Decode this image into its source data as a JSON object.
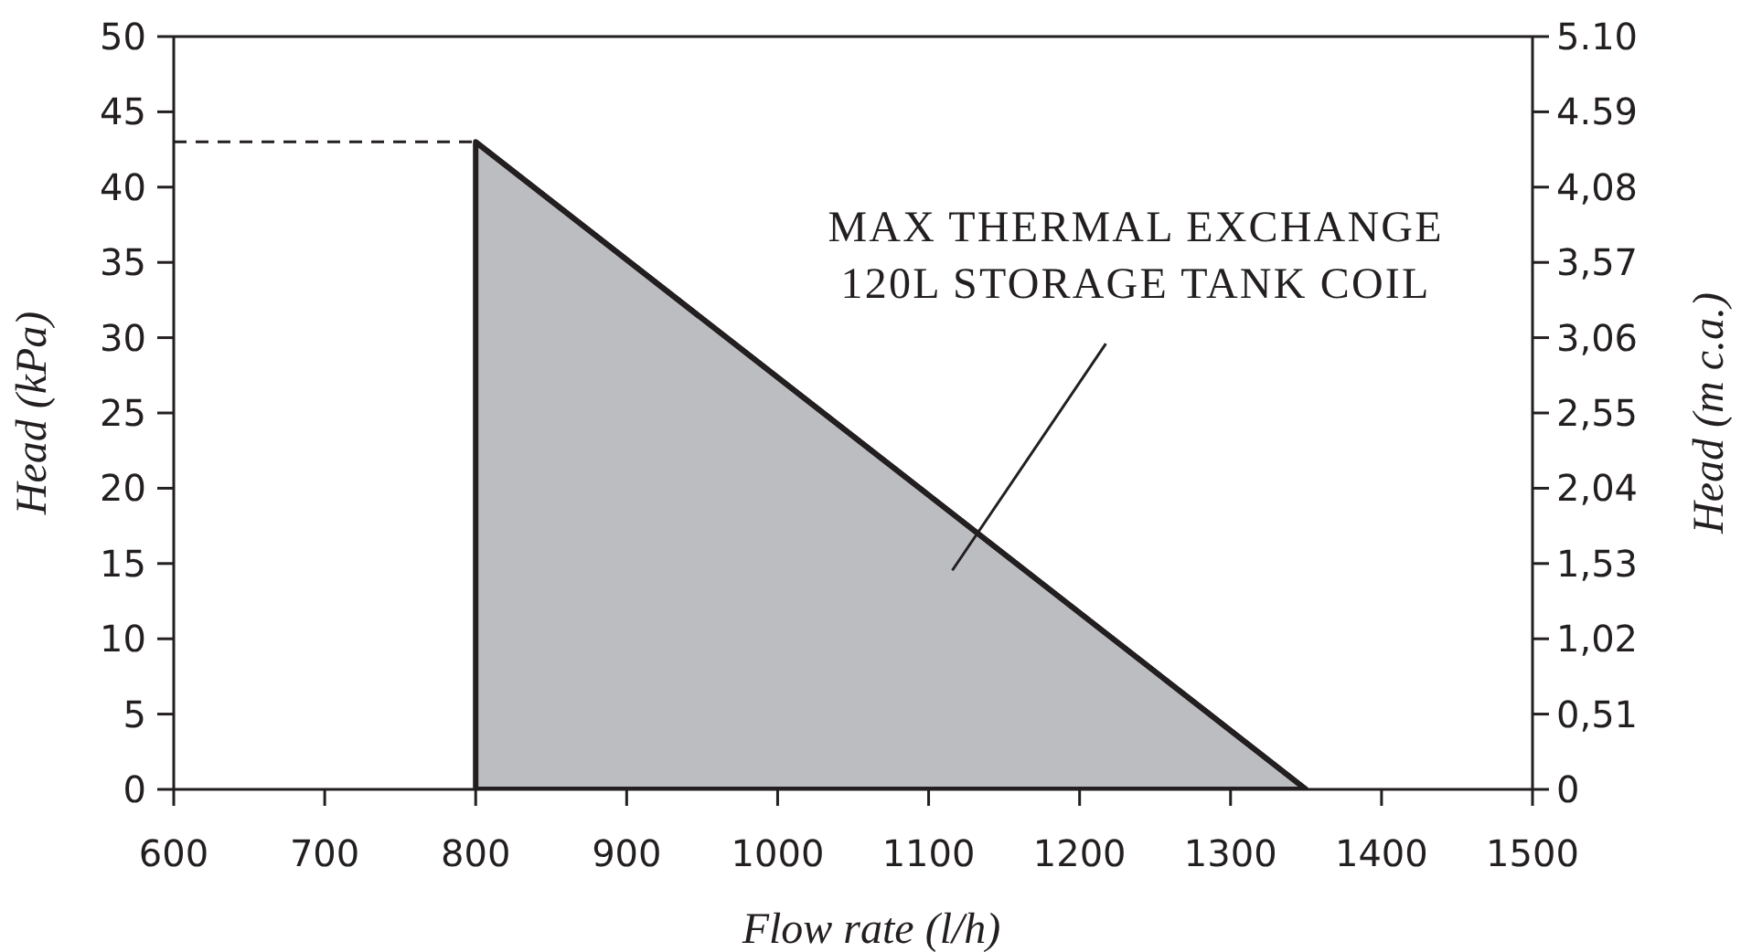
{
  "chart_data": {
    "type": "area",
    "xlabel": "Flow rate (l/h)",
    "ylabel": "Head (kPa)",
    "y2label": "Head (m c.a.)",
    "xlim": [
      600,
      1500
    ],
    "xticks": [
      600,
      700,
      800,
      900,
      1000,
      1100,
      1200,
      1300,
      1400,
      1500
    ],
    "ylim": [
      0,
      50
    ],
    "yticks": [
      0,
      5,
      10,
      15,
      20,
      25,
      30,
      35,
      40,
      45,
      50
    ],
    "y2lim": [
      0,
      5.1
    ],
    "y2ticks": [
      0,
      {
        "value": 0.51,
        "label": "0,51"
      },
      {
        "value": 1.02,
        "label": "1,02"
      },
      {
        "value": 1.53,
        "label": "1,53"
      },
      {
        "value": 2.04,
        "label": "2,04"
      },
      {
        "value": 2.55,
        "label": "2,55"
      },
      {
        "value": 3.06,
        "label": "3,06"
      },
      {
        "value": 3.57,
        "label": "3,57"
      },
      {
        "value": 4.08,
        "label": "4,08"
      },
      4.59,
      {
        "value": 5.1,
        "label": "5.10"
      }
    ],
    "series": [
      {
        "color": "#bcbdc0",
        "x": [
          800,
          1350
        ],
        "values": [
          43,
          0
        ]
      }
    ],
    "ref_lines": [
      {
        "axis": "y",
        "value": 43,
        "line_style": "dashed",
        "color": "#231f20"
      }
    ],
    "annotations": [
      "MAX THERMAL EXCHANGE\n120L STORAGE TANK COIL"
    ],
    "grid": false,
    "legend": false,
    "marker": "none"
  }
}
